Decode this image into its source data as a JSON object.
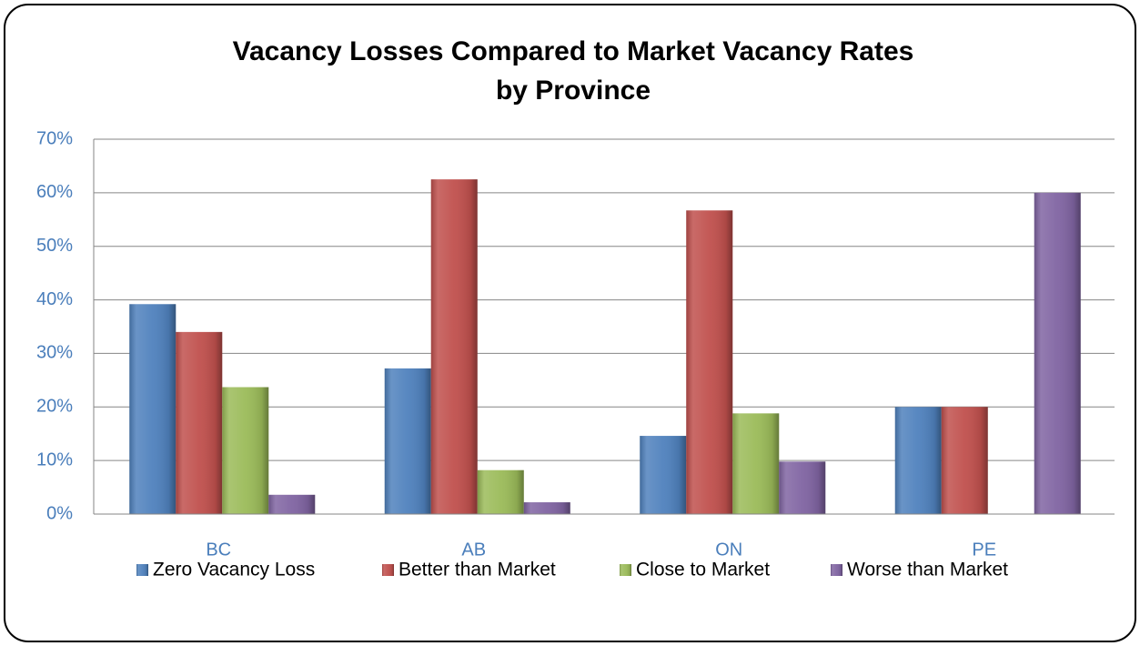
{
  "chart_data": {
    "type": "bar",
    "title": [
      "Vacancy Losses Compared to Market Vacancy Rates",
      "by Province"
    ],
    "categories": [
      "BC",
      "AB",
      "ON",
      "PE"
    ],
    "series": [
      {
        "name": "Zero Vacancy Loss",
        "color": "#4f81bd",
        "values": [
          39.2,
          27.2,
          14.6,
          20
        ]
      },
      {
        "name": "Better than Market",
        "color": "#c0504d",
        "values": [
          34,
          62.5,
          56.7,
          20
        ]
      },
      {
        "name": "Close to Market",
        "color": "#9bbb59",
        "values": [
          23.7,
          8.2,
          18.8,
          0
        ]
      },
      {
        "name": "Worse than Market",
        "color": "#8064a2",
        "values": [
          3.6,
          2.2,
          9.8,
          60
        ]
      }
    ],
    "ylim": [
      0,
      70
    ],
    "yticks": [
      {
        "value": 0,
        "label": "0%"
      },
      {
        "value": 10,
        "label": "10%"
      },
      {
        "value": 20,
        "label": "20%"
      },
      {
        "value": 30,
        "label": "30%"
      },
      {
        "value": 40,
        "label": "40%"
      },
      {
        "value": 50,
        "label": "50%"
      },
      {
        "value": 60,
        "label": "60%"
      },
      {
        "value": 70,
        "label": "70%"
      }
    ],
    "grid": true,
    "legend": "bottom"
  }
}
